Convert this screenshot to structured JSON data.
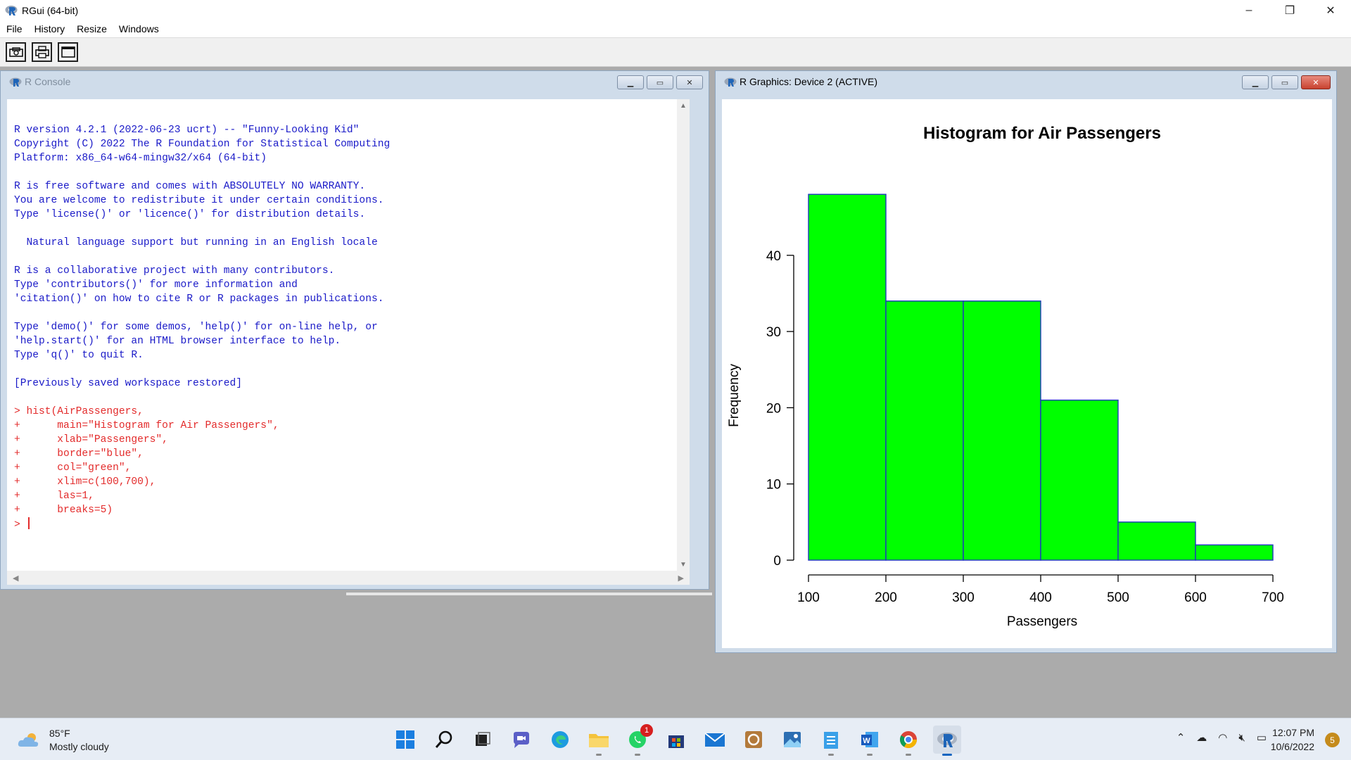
{
  "app": {
    "title": "RGui (64-bit)",
    "window_controls": {
      "minimize": "–",
      "restore": "❐",
      "close": "✕"
    }
  },
  "menu": [
    "File",
    "History",
    "Resize",
    "Windows"
  ],
  "toolbar": {
    "buttons": [
      "open-script-icon",
      "print-icon",
      "window-icon"
    ]
  },
  "console": {
    "title": "R Console",
    "output_lines": [
      "R version 4.2.1 (2022-06-23 ucrt) -- \"Funny-Looking Kid\"",
      "Copyright (C) 2022 The R Foundation for Statistical Computing",
      "Platform: x86_64-w64-mingw32/x64 (64-bit)",
      "",
      "R is free software and comes with ABSOLUTELY NO WARRANTY.",
      "You are welcome to redistribute it under certain conditions.",
      "Type 'license()' or 'licence()' for distribution details.",
      "",
      "  Natural language support but running in an English locale",
      "",
      "R is a collaborative project with many contributors.",
      "Type 'contributors()' for more information and",
      "'citation()' on how to cite R or R packages in publications.",
      "",
      "Type 'demo()' for some demos, 'help()' for on-line help, or",
      "'help.start()' for an HTML browser interface to help.",
      "Type 'q()' to quit R.",
      "",
      "[Previously saved workspace restored]",
      ""
    ],
    "command_lines": [
      "> hist(AirPassengers,",
      "+      main=\"Histogram for Air Passengers\",",
      "+      xlab=\"Passengers\",",
      "+      border=\"blue\",",
      "+      col=\"green\",",
      "+      xlim=c(100,700),",
      "+      las=1,",
      "+      breaks=5)"
    ],
    "prompt": "> ",
    "colors": {
      "output": "#1a1ac8",
      "command": "#e32b2b"
    }
  },
  "graphics": {
    "title": "R Graphics: Device 2 (ACTIVE)"
  },
  "chart_data": {
    "type": "bar",
    "title": "Histogram for Air Passengers",
    "xlabel": "Passengers",
    "ylabel": "Frequency",
    "bins": [
      [
        100,
        200
      ],
      [
        200,
        300
      ],
      [
        300,
        400
      ],
      [
        400,
        500
      ],
      [
        500,
        600
      ],
      [
        600,
        700
      ]
    ],
    "values": [
      48,
      34,
      34,
      21,
      5,
      2
    ],
    "xlim": [
      100,
      700
    ],
    "ylim": [
      0,
      48
    ],
    "x_ticks": [
      100,
      200,
      300,
      400,
      500,
      600,
      700
    ],
    "y_ticks": [
      0,
      10,
      20,
      30,
      40
    ],
    "fill_color": "#00ff00",
    "border_color": "#2035c0",
    "grid": false
  },
  "taskbar": {
    "weather": {
      "temp": "85°F",
      "desc": "Mostly cloudy"
    },
    "apps": [
      {
        "name": "windows-start-icon"
      },
      {
        "name": "search-icon"
      },
      {
        "name": "task-view-icon"
      },
      {
        "name": "teams-chat-icon"
      },
      {
        "name": "edge-icon"
      },
      {
        "name": "file-explorer-icon"
      },
      {
        "name": "whatsapp-icon",
        "badge": "1"
      },
      {
        "name": "microsoft-store-icon"
      },
      {
        "name": "mail-icon"
      },
      {
        "name": "app-icon"
      },
      {
        "name": "photos-icon"
      },
      {
        "name": "notepad-icon"
      },
      {
        "name": "word-icon"
      },
      {
        "name": "chrome-icon"
      },
      {
        "name": "r-gui-icon"
      }
    ],
    "clock": {
      "time": "12:07 PM",
      "date": "10/6/2022"
    },
    "notification_count": "5"
  }
}
